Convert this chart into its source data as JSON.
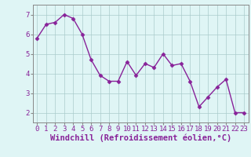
{
  "x": [
    0,
    1,
    2,
    3,
    4,
    5,
    6,
    7,
    8,
    9,
    10,
    11,
    12,
    13,
    14,
    15,
    16,
    17,
    18,
    19,
    20,
    21,
    22,
    23
  ],
  "y": [
    5.8,
    6.5,
    6.6,
    7.0,
    6.8,
    6.0,
    4.7,
    3.9,
    3.6,
    3.6,
    4.6,
    3.9,
    4.5,
    4.3,
    5.0,
    4.4,
    4.5,
    3.6,
    2.3,
    2.8,
    3.3,
    3.7,
    2.0,
    2.0
  ],
  "line_color": "#882299",
  "marker": "D",
  "markersize": 2.5,
  "linewidth": 1.0,
  "bg_color": "#dff5f5",
  "grid_color": "#aacccc",
  "xlabel": "Windchill (Refroidissement éolien,°C)",
  "xlabel_fontsize": 7.5,
  "ylabel_ticks": [
    2,
    3,
    4,
    5,
    6,
    7
  ],
  "ylim": [
    1.5,
    7.5
  ],
  "xlim": [
    -0.5,
    23.5
  ],
  "tick_fontsize": 6.5,
  "spine_color": "#888888",
  "tick_color": "#882299"
}
